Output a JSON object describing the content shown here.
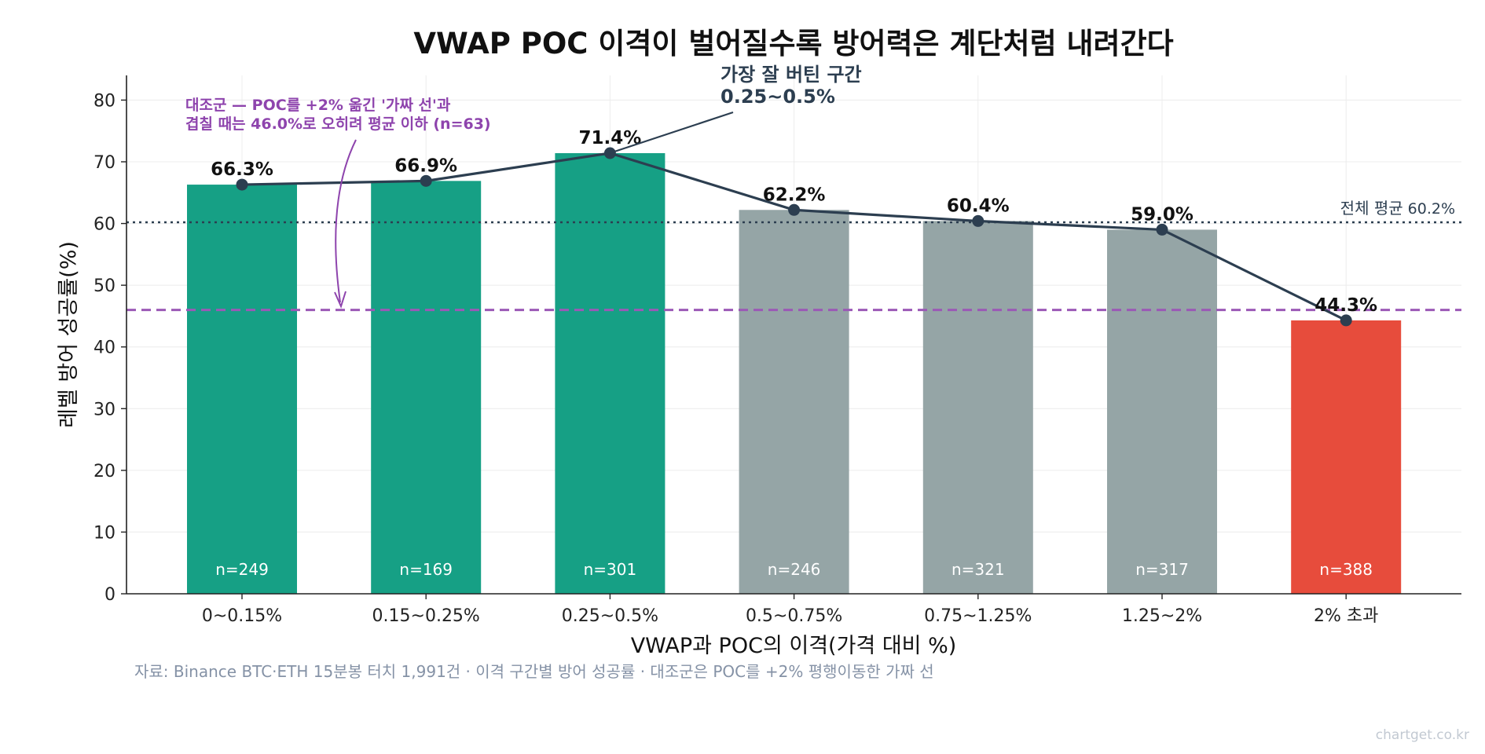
{
  "chart_data": {
    "type": "bar",
    "title": "VWAP POC 이격이 벌어질수록 방어력은 계단처럼 내려간다",
    "xlabel": "VWAP과 POC의 이격(가격 대비 %)",
    "ylabel": "레벨 방어 성공률(%)",
    "ylim": [
      0,
      84
    ],
    "yticks": [
      0,
      10,
      20,
      30,
      40,
      50,
      60,
      70,
      80
    ],
    "grid": true,
    "categories": [
      "0~0.15%",
      "0.15~0.25%",
      "0.25~0.5%",
      "0.5~0.75%",
      "0.75~1.25%",
      "1.25~2%",
      "2% 초과"
    ],
    "values": [
      66.3,
      66.9,
      71.4,
      62.2,
      60.4,
      59.0,
      44.3
    ],
    "value_labels": [
      "66.3%",
      "66.9%",
      "71.4%",
      "62.2%",
      "60.4%",
      "59.0%",
      "44.3%"
    ],
    "n_labels": [
      "n=249",
      "n=169",
      "n=301",
      "n=246",
      "n=321",
      "n=317",
      "n=388"
    ],
    "bar_colors": [
      "#16a085",
      "#16a085",
      "#16a085",
      "#95a5a6",
      "#95a5a6",
      "#95a5a6",
      "#e74c3c"
    ],
    "line_color": "#2c3e50",
    "reference_lines": [
      {
        "value": 60.2,
        "style": "dotted",
        "color": "#2c3e50",
        "label_prefix": "전체 평균",
        "label_value": "60.2%"
      },
      {
        "value": 46.0,
        "style": "dashed",
        "color": "#9b59b6"
      }
    ],
    "annotations": {
      "peak": {
        "line1": "가장 잘 버틴 구간",
        "line2": "0.25~0.5%",
        "color": "#2c3e50"
      },
      "control": {
        "line1": "대조군 — POC를 +2% 옮긴 '가짜 선'과",
        "line2": "겹칠 때는 46.0%로 오히려 평균 이하 (n=63)",
        "color": "#8e44ad"
      }
    },
    "source": "자료: Binance BTC·ETH 15분봉 터치 1,991건 · 이격 구간별 방어 성공률 · 대조군은 POC를 +2% 평행이동한 가짜 선",
    "watermark": "chartget.co.kr"
  }
}
